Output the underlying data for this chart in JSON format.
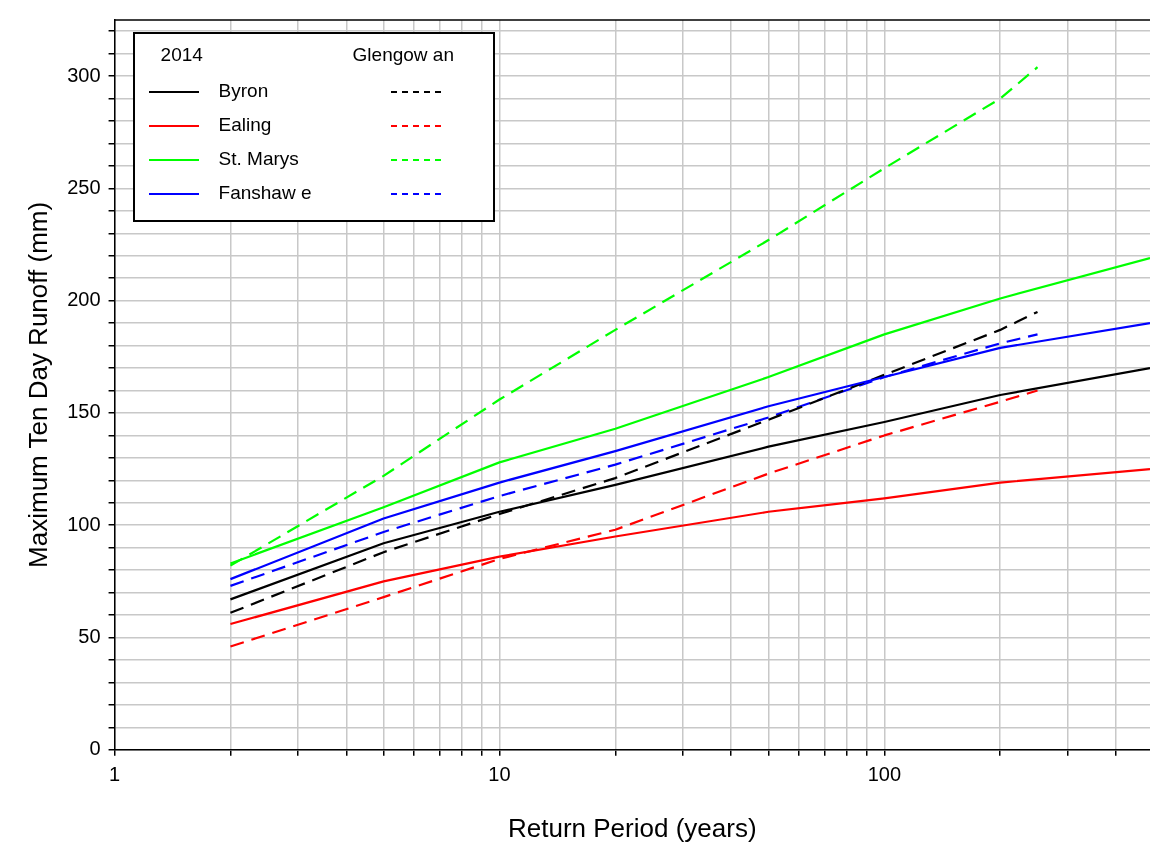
{
  "chart_data": {
    "type": "line",
    "xlabel": "Return Period (years)",
    "ylabel": "Maximum Ten Day Runoff (mm)",
    "legend_title": "2014",
    "annotations": [
      "Glengow an"
    ],
    "log": "x",
    "grid": true,
    "legend": "top left",
    "marker": "none",
    "xlim": [
      1,
      490
    ],
    "ylim": [
      0,
      325
    ],
    "xticks": [
      1,
      {
        "value": 2,
        "label": null
      },
      {
        "value": 3,
        "label": null
      },
      {
        "value": 4,
        "label": null
      },
      {
        "value": 5,
        "label": null
      },
      {
        "value": 6,
        "label": null
      },
      {
        "value": 7,
        "label": null
      },
      {
        "value": 8,
        "label": null
      },
      {
        "value": 9,
        "label": null
      },
      10,
      {
        "value": 20,
        "label": null
      },
      {
        "value": 30,
        "label": null
      },
      {
        "value": 40,
        "label": null
      },
      {
        "value": 50,
        "label": null
      },
      {
        "value": 60,
        "label": null
      },
      {
        "value": 70,
        "label": null
      },
      {
        "value": 80,
        "label": null
      },
      {
        "value": 90,
        "label": null
      },
      100,
      {
        "value": 200,
        "label": null
      },
      {
        "value": 300,
        "label": null
      },
      {
        "value": 400,
        "label": null
      }
    ],
    "yticks": [
      0,
      {
        "value": 10,
        "label": null
      },
      {
        "value": 20,
        "label": null
      },
      {
        "value": 30,
        "label": null
      },
      {
        "value": 40,
        "label": null
      },
      50,
      {
        "value": 60,
        "label": null
      },
      {
        "value": 70,
        "label": null
      },
      {
        "value": 80,
        "label": null
      },
      {
        "value": 90,
        "label": null
      },
      100,
      {
        "value": 110,
        "label": null
      },
      {
        "value": 120,
        "label": null
      },
      {
        "value": 130,
        "label": null
      },
      {
        "value": 140,
        "label": null
      },
      150,
      {
        "value": 160,
        "label": null
      },
      {
        "value": 170,
        "label": null
      },
      {
        "value": 180,
        "label": null
      },
      {
        "value": 190,
        "label": null
      },
      200,
      {
        "value": 210,
        "label": null
      },
      {
        "value": 220,
        "label": null
      },
      {
        "value": 230,
        "label": null
      },
      {
        "value": 240,
        "label": null
      },
      250,
      {
        "value": 260,
        "label": null
      },
      {
        "value": 270,
        "label": null
      },
      {
        "value": 280,
        "label": null
      },
      {
        "value": 290,
        "label": null
      },
      300,
      {
        "value": 310,
        "label": null
      },
      {
        "value": 320,
        "label": null
      }
    ],
    "series": [
      {
        "name": "Byron",
        "color": "#000000",
        "line_style": "solid",
        "x": [
          2,
          5,
          10,
          20,
          50,
          100,
          200,
          490
        ],
        "values": [
          67,
          92,
          106,
          118,
          135,
          146,
          158,
          170
        ]
      },
      {
        "name": "Ealing",
        "color": "#ff0000",
        "line_style": "solid",
        "x": [
          2,
          5,
          10,
          20,
          50,
          100,
          200,
          490
        ],
        "values": [
          56,
          75,
          86,
          95,
          106,
          112,
          119,
          125
        ]
      },
      {
        "name": "St. Marys",
        "color": "#00ff00",
        "line_style": "solid",
        "x": [
          2,
          5,
          10,
          20,
          50,
          100,
          200,
          490
        ],
        "values": [
          83,
          108,
          128,
          143,
          166,
          185,
          201,
          219
        ]
      },
      {
        "name": "Fanshaw e",
        "color": "#0000ff",
        "line_style": "solid",
        "x": [
          2,
          5,
          10,
          20,
          50,
          100,
          200,
          490
        ],
        "values": [
          76,
          103,
          119,
          133,
          153,
          166,
          179,
          190
        ]
      },
      {
        "color": "#000000",
        "line_style": "dashed",
        "x": [
          2,
          5,
          10,
          20,
          50,
          100,
          200,
          250
        ],
        "values": [
          61,
          88,
          105,
          121,
          147,
          167,
          187,
          195
        ]
      },
      {
        "color": "#ff0000",
        "line_style": "dashed",
        "x": [
          2,
          5,
          10,
          20,
          50,
          100,
          200,
          250
        ],
        "values": [
          46,
          68,
          85,
          98,
          123,
          140,
          155,
          160
        ]
      },
      {
        "color": "#00ff00",
        "line_style": "dashed",
        "x": [
          2,
          5,
          10,
          20,
          50,
          100,
          200,
          250
        ],
        "values": [
          82,
          122,
          156,
          187,
          227,
          259,
          290,
          304
        ]
      },
      {
        "color": "#0000ff",
        "line_style": "dashed",
        "x": [
          2,
          5,
          10,
          20,
          50,
          100,
          200,
          250
        ],
        "values": [
          73,
          97,
          113,
          127,
          148,
          166,
          181,
          185
        ]
      }
    ]
  }
}
